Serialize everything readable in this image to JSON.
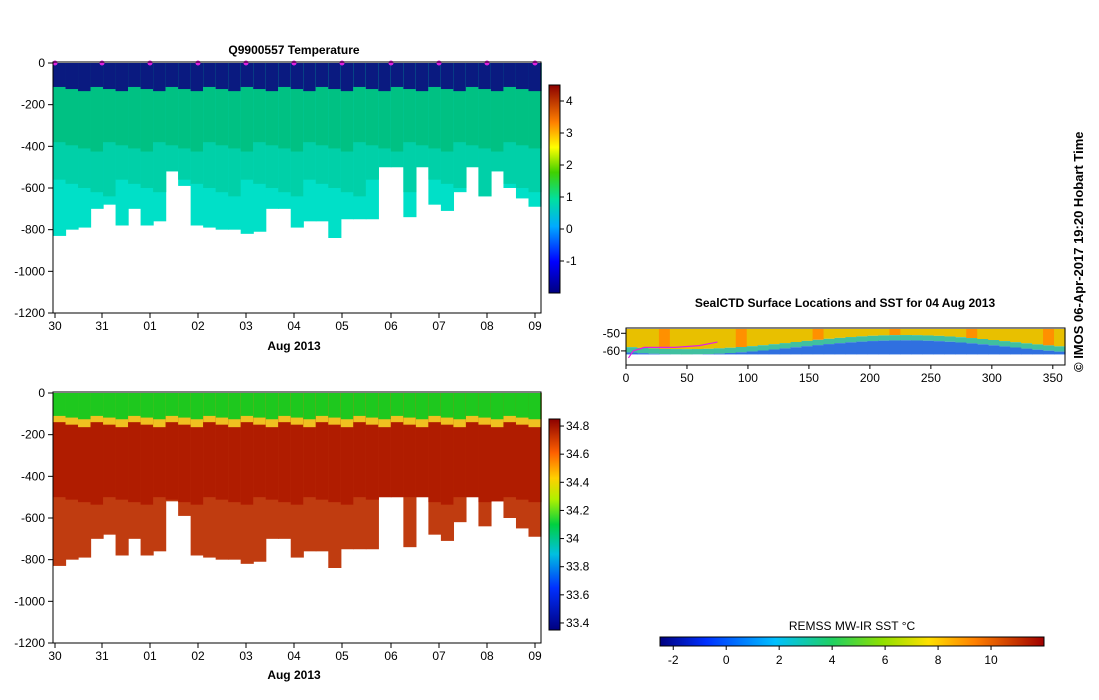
{
  "chart_data": [
    {
      "type": "heatmap",
      "title": "Q9900557  Temperature",
      "xlabel": "Aug 2013",
      "x_tick_labels": [
        "30",
        "31",
        "01",
        "02",
        "03",
        "04",
        "05",
        "06",
        "07",
        "08",
        "09"
      ],
      "ylim": [
        -1200,
        0
      ],
      "y_ticks": [
        0,
        -200,
        -400,
        -600,
        -800,
        -1000,
        -1200
      ],
      "colorbar": {
        "range": [
          -2,
          4.5
        ],
        "ticks": [
          4,
          3,
          2,
          1,
          0,
          -1
        ]
      },
      "colors": {
        "layer1": "#0a1a80",
        "layer2": "#00c183",
        "layer3": "#00d0a8",
        "layer4": "#00e0c8",
        "marker": "#e020e0"
      },
      "profile_max_depths": [
        830,
        800,
        790,
        700,
        680,
        780,
        700,
        780,
        760,
        520,
        590,
        780,
        790,
        800,
        800,
        820,
        810,
        700,
        700,
        790,
        760,
        760,
        840,
        750,
        750,
        750,
        500,
        500,
        740,
        500,
        680,
        710,
        620,
        500,
        640,
        520,
        600,
        650,
        690
      ]
    },
    {
      "type": "heatmap",
      "title": "",
      "xlabel": "Aug 2013",
      "x_tick_labels": [
        "30",
        "31",
        "01",
        "02",
        "03",
        "04",
        "05",
        "06",
        "07",
        "08",
        "09"
      ],
      "ylim": [
        -1200,
        0
      ],
      "y_ticks": [
        0,
        -200,
        -400,
        -600,
        -800,
        -1000,
        -1200
      ],
      "colorbar": {
        "range": [
          33.35,
          34.85
        ],
        "ticks": [
          34.8,
          34.6,
          34.4,
          34.2,
          34.0,
          33.8,
          33.6,
          33.4
        ],
        "tick_labels": [
          "34.8",
          "34.6",
          "34.4",
          "34.2",
          "34",
          "33.8",
          "33.6",
          "33.4"
        ]
      },
      "colors": {
        "surface": "#1ec81e",
        "band": "#f0c020",
        "deep": "#b01c00",
        "deepest": "#c03c10"
      }
    },
    {
      "type": "heatmap",
      "title": "SealCTD Surface Locations and SST for 04 Aug 2013",
      "x_tick_labels": [
        "0",
        "50",
        "100",
        "150",
        "200",
        "250",
        "300",
        "350"
      ],
      "x_ticks": [
        0,
        50,
        100,
        150,
        200,
        250,
        300,
        350
      ],
      "xlim": [
        0,
        360
      ],
      "ylim": [
        -68,
        -47
      ],
      "y_ticks": [
        -50,
        -60
      ],
      "colorbar": {
        "label": "REMSS MW-IR SST °C",
        "range": [
          -2.5,
          12
        ],
        "ticks": [
          -2,
          0,
          2,
          4,
          6,
          8,
          10
        ]
      }
    }
  ],
  "stamp": "© IMOS 06-Apr-2017 19:20 Hobart Time"
}
